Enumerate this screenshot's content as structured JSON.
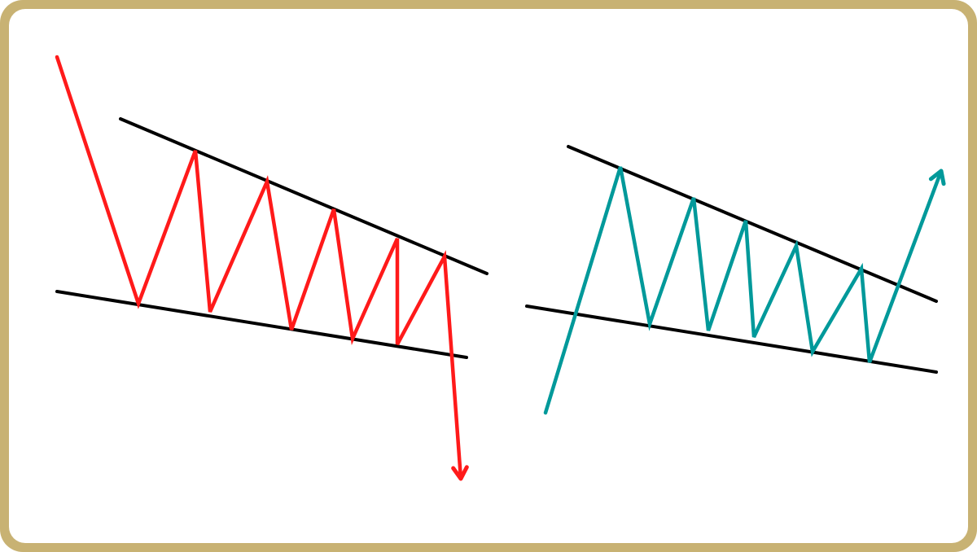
{
  "colors": {
    "frame": "#c8b273",
    "background": "#ffffff",
    "trendlines": "#000000",
    "bearish_price": "#ff1a1a",
    "bullish_price": "#00999a"
  },
  "patterns": [
    {
      "breakout": "down",
      "color_key": "bearish_price"
    },
    {
      "breakout": "up",
      "color_key": "bullish_price"
    }
  ]
}
